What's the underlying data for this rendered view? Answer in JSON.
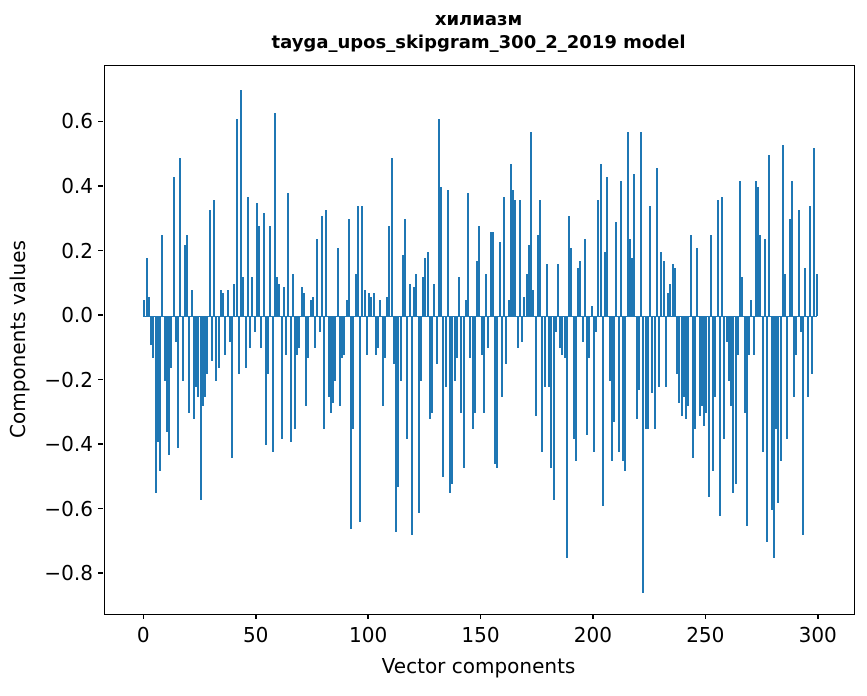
{
  "chart_data": {
    "type": "bar",
    "title": "хилиазм",
    "subtitle": "tayga_upos_skipgram_300_2_2019 model",
    "xlabel": "Vector components",
    "ylabel": "Components values",
    "bar_color": "#1f77b4",
    "background_color": "#ffffff",
    "grid": false,
    "legend": "none",
    "n_bars": 300,
    "xlim": [
      -17.5,
      315.7
    ],
    "ylim": [
      -0.924,
      0.775
    ],
    "x_ticks": [
      0,
      50,
      100,
      150,
      200,
      250,
      300
    ],
    "x_tick_labels": [
      "0",
      "50",
      "100",
      "150",
      "200",
      "250",
      "300"
    ],
    "y_ticks": [
      0.6,
      0.4,
      0.2,
      0.0,
      -0.2,
      -0.4,
      -0.6,
      -0.8
    ],
    "y_tick_labels": [
      "0.6",
      "0.4",
      "0.2",
      "0.0",
      "−0.2",
      "−0.4",
      "−0.6",
      "−0.8"
    ],
    "values": [
      0.05,
      0.18,
      0.06,
      -0.09,
      -0.13,
      -0.55,
      -0.39,
      -0.48,
      0.25,
      -0.2,
      -0.36,
      -0.43,
      -0.16,
      0.43,
      -0.08,
      -0.41,
      0.49,
      -0.2,
      0.22,
      0.25,
      -0.3,
      0.08,
      -0.32,
      -0.22,
      -0.25,
      -0.57,
      -0.28,
      -0.25,
      -0.18,
      0.33,
      -0.14,
      0.36,
      -0.2,
      -0.16,
      0.08,
      0.07,
      -0.12,
      0.08,
      -0.08,
      -0.44,
      0.1,
      0.61,
      -0.18,
      0.7,
      0.12,
      -0.16,
      0.37,
      -0.1,
      0.12,
      -0.05,
      0.35,
      0.28,
      -0.1,
      0.32,
      -0.4,
      -0.18,
      0.28,
      -0.42,
      0.63,
      0.12,
      0.1,
      -0.38,
      0.09,
      -0.12,
      0.38,
      -0.39,
      0.13,
      -0.35,
      -0.12,
      -0.1,
      0.09,
      0.07,
      -0.28,
      -0.13,
      0.05,
      0.06,
      -0.1,
      0.24,
      -0.05,
      0.31,
      -0.35,
      0.33,
      -0.25,
      -0.3,
      -0.27,
      -0.2,
      0.21,
      -0.28,
      -0.13,
      -0.12,
      0.05,
      0.3,
      -0.66,
      -0.35,
      0.13,
      0.34,
      -0.64,
      0.34,
      0.08,
      -0.12,
      0.07,
      0.06,
      0.07,
      -0.12,
      -0.1,
      0.05,
      -0.28,
      -0.13,
      0.06,
      0.28,
      0.49,
      -0.15,
      -0.67,
      -0.53,
      -0.2,
      0.19,
      0.3,
      -0.38,
      0.1,
      -0.68,
      0.09,
      0.13,
      -0.61,
      -0.2,
      0.12,
      0.18,
      0.2,
      -0.32,
      -0.3,
      0.1,
      -0.15,
      0.61,
      0.4,
      -0.5,
      -0.22,
      0.39,
      -0.55,
      -0.52,
      -0.2,
      -0.13,
      0.12,
      -0.3,
      -0.47,
      0.05,
      0.38,
      -0.13,
      -0.35,
      -0.3,
      0.17,
      0.28,
      -0.12,
      -0.3,
      0.13,
      -0.1,
      0.26,
      0.26,
      -0.46,
      -0.47,
      0.23,
      -0.25,
      0.37,
      -0.15,
      0.05,
      0.47,
      0.39,
      0.36,
      -0.1,
      0.36,
      -0.08,
      0.06,
      0.13,
      0.22,
      0.57,
      0.08,
      -0.31,
      0.25,
      0.36,
      -0.42,
      -0.22,
      0.16,
      -0.22,
      -0.47,
      -0.57,
      -0.05,
      0.16,
      -0.1,
      -0.12,
      -0.13,
      -0.75,
      0.31,
      0.21,
      -0.38,
      -0.45,
      0.15,
      0.17,
      -0.08,
      0.24,
      -0.37,
      -0.13,
      0.03,
      -0.42,
      -0.05,
      0.36,
      0.47,
      -0.59,
      0.2,
      0.43,
      -0.2,
      -0.45,
      -0.33,
      0.29,
      -0.42,
      0.42,
      -0.45,
      -0.48,
      0.57,
      0.24,
      0.18,
      0.44,
      -0.32,
      -0.23,
      0.57,
      -0.86,
      -0.35,
      -0.35,
      0.34,
      -0.24,
      -0.35,
      0.46,
      -0.22,
      0.2,
      0.17,
      -0.22,
      0.07,
      0.1,
      0.16,
      0.15,
      -0.18,
      -0.27,
      -0.31,
      -0.25,
      -0.32,
      -0.28,
      0.25,
      -0.44,
      -0.35,
      0.21,
      -0.31,
      -0.28,
      -0.34,
      -0.3,
      -0.56,
      0.25,
      -0.48,
      -0.25,
      0.36,
      -0.62,
      0.37,
      -0.38,
      -0.08,
      -0.2,
      -0.28,
      -0.55,
      -0.52,
      -0.12,
      0.42,
      0.12,
      -0.3,
      -0.65,
      -0.12,
      0.05,
      -0.12,
      0.42,
      0.4,
      0.25,
      -0.42,
      0.24,
      -0.7,
      0.5,
      -0.6,
      -0.75,
      -0.35,
      -0.58,
      -0.45,
      0.53,
      0.13,
      -0.38,
      0.3,
      0.42,
      -0.25,
      -0.12,
      0.33,
      -0.05,
      -0.68,
      0.15,
      -0.25,
      0.34,
      -0.18,
      0.52,
      0.13
    ]
  }
}
